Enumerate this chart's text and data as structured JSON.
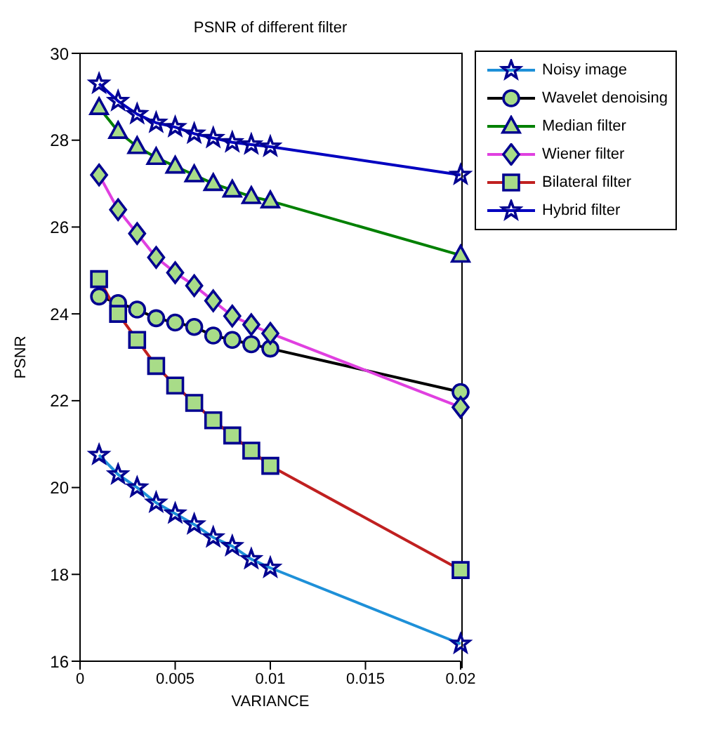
{
  "chart_data": {
    "type": "line",
    "title": "PSNR of different filter",
    "xlabel": "VARIANCE",
    "ylabel": "PSNR",
    "x": [
      0.001,
      0.002,
      0.003,
      0.004,
      0.005,
      0.006,
      0.007,
      0.008,
      0.009,
      0.01,
      0.02
    ],
    "xlim": [
      0,
      0.02
    ],
    "xticks": [
      0,
      0.005,
      0.01,
      0.015,
      0.02
    ],
    "ylim": [
      16,
      30
    ],
    "yticks": [
      16,
      18,
      20,
      22,
      24,
      26,
      28,
      30
    ],
    "grid": false,
    "legend": "top right",
    "line_style": "solid",
    "series": [
      {
        "name": "Noisy image",
        "color": "#1e90d8",
        "marker": "star",
        "values": [
          20.75,
          20.3,
          20.0,
          19.65,
          19.4,
          19.15,
          18.85,
          18.65,
          18.35,
          18.15,
          16.4
        ]
      },
      {
        "name": "Wavelet denoising",
        "color": "#000000",
        "marker": "circle",
        "values": [
          24.4,
          24.25,
          24.1,
          23.9,
          23.8,
          23.7,
          23.5,
          23.4,
          23.3,
          23.2,
          22.2
        ]
      },
      {
        "name": "Median filter",
        "color": "#008000",
        "marker": "triangle",
        "values": [
          28.75,
          28.2,
          27.85,
          27.6,
          27.4,
          27.2,
          27.0,
          26.85,
          26.7,
          26.6,
          25.35
        ]
      },
      {
        "name": "Wiener filter",
        "color": "#e040e0",
        "marker": "diamond",
        "values": [
          27.2,
          26.4,
          25.85,
          25.3,
          24.95,
          24.65,
          24.3,
          23.95,
          23.75,
          23.55,
          21.85
        ]
      },
      {
        "name": "Bilateral filter",
        "color": "#c02020",
        "marker": "square",
        "values": [
          24.8,
          24.0,
          23.4,
          22.8,
          22.35,
          21.95,
          21.55,
          21.2,
          20.85,
          20.5,
          18.1
        ]
      },
      {
        "name": "Hybrid filter",
        "color": "#0000c0",
        "marker": "star",
        "values": [
          29.3,
          28.9,
          28.6,
          28.4,
          28.3,
          28.15,
          28.05,
          27.95,
          27.9,
          27.85,
          27.2
        ]
      }
    ]
  }
}
